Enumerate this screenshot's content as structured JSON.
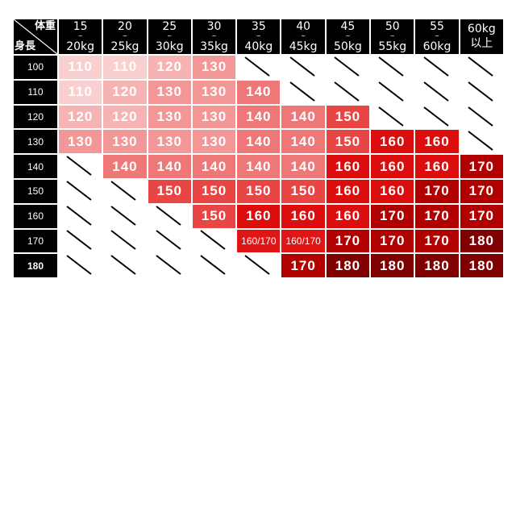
{
  "corner": {
    "weight_label": "体重",
    "height_label": "身長"
  },
  "columns": [
    {
      "from": "15",
      "sep": "~",
      "to": "20kg"
    },
    {
      "from": "20",
      "sep": "~",
      "to": "25kg"
    },
    {
      "from": "25",
      "sep": "~",
      "to": "30kg"
    },
    {
      "from": "30",
      "sep": "~",
      "to": "35kg"
    },
    {
      "from": "35",
      "sep": "~",
      "to": "40kg"
    },
    {
      "from": "40",
      "sep": "~",
      "to": "45kg"
    },
    {
      "from": "45",
      "sep": "~",
      "to": "50kg"
    },
    {
      "from": "50",
      "sep": "~",
      "to": "55kg"
    },
    {
      "from": "55",
      "sep": "~",
      "to": "60kg"
    },
    {
      "from": "60kg",
      "sep": "",
      "to": "以上"
    }
  ],
  "rows": [
    {
      "height": "100",
      "sizes": [
        "110",
        "110",
        "120",
        "130",
        null,
        null,
        null,
        null,
        null,
        null
      ]
    },
    {
      "height": "110",
      "sizes": [
        "110",
        "120",
        "130",
        "130",
        "140",
        null,
        null,
        null,
        null,
        null
      ]
    },
    {
      "height": "120",
      "sizes": [
        "120",
        "120",
        "130",
        "130",
        "140",
        "140",
        "150",
        null,
        null,
        null
      ]
    },
    {
      "height": "130",
      "sizes": [
        "130",
        "130",
        "130",
        "130",
        "140",
        "140",
        "150",
        "160",
        "160",
        null
      ]
    },
    {
      "height": "140",
      "sizes": [
        null,
        "140",
        "140",
        "140",
        "140",
        "140",
        "160",
        "160",
        "160",
        "170"
      ]
    },
    {
      "height": "150",
      "sizes": [
        null,
        null,
        "150",
        "150",
        "150",
        "150",
        "160",
        "160",
        "170",
        "170"
      ]
    },
    {
      "height": "160",
      "sizes": [
        null,
        null,
        null,
        "150",
        "160",
        "160",
        "160",
        "170",
        "170",
        "170"
      ]
    },
    {
      "height": "170",
      "sizes": [
        null,
        null,
        null,
        null,
        "160/170",
        "160/170",
        "170",
        "170",
        "170",
        "180"
      ]
    },
    {
      "height": "180",
      "sizes": [
        null,
        null,
        null,
        null,
        null,
        "170",
        "180",
        "180",
        "180",
        "180"
      ]
    }
  ],
  "colors": {
    "110": "#f9cfcf",
    "120": "#f6b3b3",
    "130": "#f29696",
    "140": "#ee7878",
    "150": "#e84545",
    "160": "#dc0d0d",
    "160/170": "#e01616",
    "170": "#b00000",
    "180": "#7f0000",
    "header_bg": "#000000",
    "empty_slash": "#000000"
  }
}
